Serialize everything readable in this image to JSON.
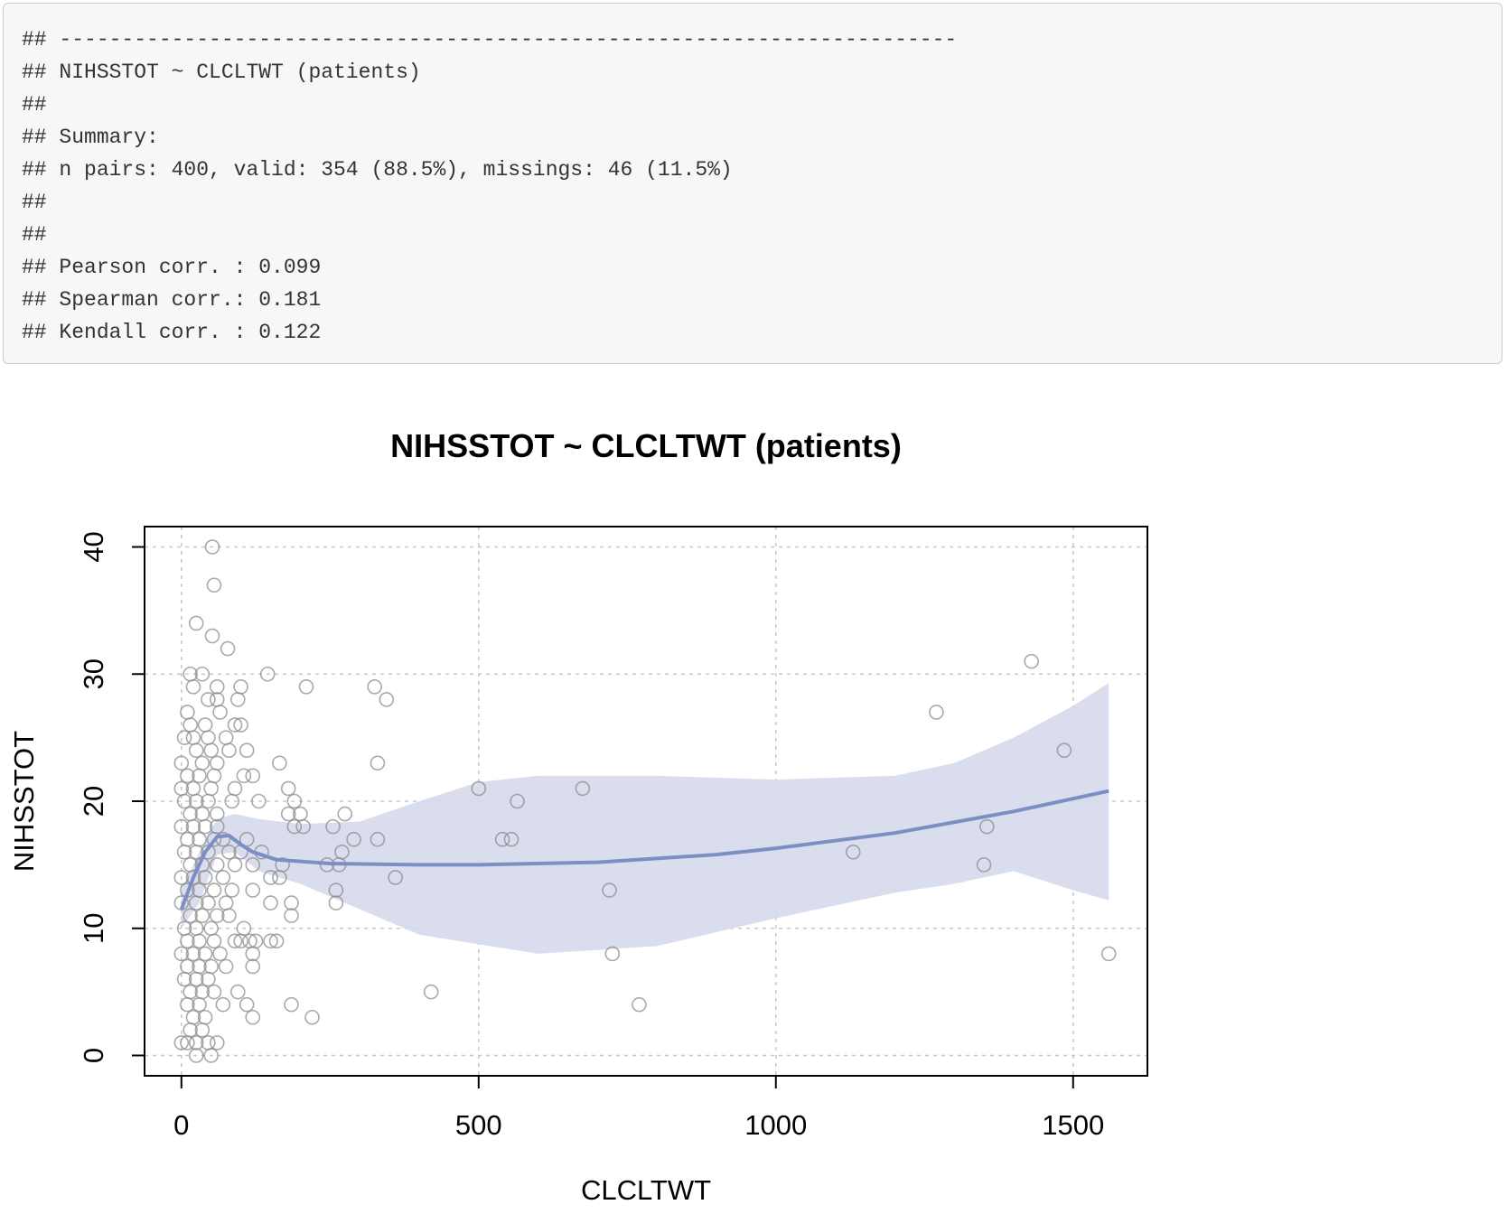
{
  "console": {
    "lines": [
      "## ------------------------------------------------------------------------",
      "## NIHSSTOT ~ CLCLTWT (patients)",
      "##",
      "## Summary:",
      "## n pairs: 400, valid: 354 (88.5%), missings: 46 (11.5%)",
      "##",
      "##",
      "## Pearson corr. : 0.099",
      "## Spearman corr.: 0.181",
      "## Kendall corr. : 0.122"
    ]
  },
  "chart_data": {
    "type": "scatter",
    "title": "NIHSSTOT ~ CLCLTWT (patients)",
    "xlabel": "CLCLTWT",
    "ylabel": "NIHSSTOT",
    "xlim": [
      -62,
      1625
    ],
    "ylim": [
      -1.6,
      41.6
    ],
    "x_ticks": [
      0,
      500,
      1000,
      1500
    ],
    "y_ticks": [
      0,
      10,
      20,
      30,
      40
    ],
    "grid": true,
    "colors": {
      "points": "#8c8c8c",
      "smooth_line": "#7b8fc4",
      "confidence_band": "#d5d9ec",
      "grid": "#c8c8c8"
    },
    "points": [
      [
        52,
        40
      ],
      [
        55,
        37
      ],
      [
        25,
        34
      ],
      [
        52,
        33
      ],
      [
        78,
        32
      ],
      [
        15,
        30
      ],
      [
        35,
        30
      ],
      [
        145,
        30
      ],
      [
        210,
        29
      ],
      [
        325,
        29
      ],
      [
        100,
        29
      ],
      [
        60,
        29
      ],
      [
        20,
        29
      ],
      [
        45,
        28
      ],
      [
        60,
        28
      ],
      [
        95,
        28
      ],
      [
        345,
        28
      ],
      [
        10,
        27
      ],
      [
        65,
        27
      ],
      [
        1270,
        27
      ],
      [
        15,
        26
      ],
      [
        40,
        26
      ],
      [
        90,
        26
      ],
      [
        100,
        26
      ],
      [
        5,
        25
      ],
      [
        20,
        25
      ],
      [
        45,
        25
      ],
      [
        75,
        25
      ],
      [
        1430,
        31
      ],
      [
        1485,
        24
      ],
      [
        25,
        24
      ],
      [
        50,
        24
      ],
      [
        80,
        24
      ],
      [
        110,
        24
      ],
      [
        0,
        23
      ],
      [
        35,
        23
      ],
      [
        60,
        23
      ],
      [
        165,
        23
      ],
      [
        330,
        23
      ],
      [
        10,
        22
      ],
      [
        30,
        22
      ],
      [
        55,
        22
      ],
      [
        105,
        22
      ],
      [
        120,
        22
      ],
      [
        0,
        21
      ],
      [
        20,
        21
      ],
      [
        50,
        21
      ],
      [
        90,
        21
      ],
      [
        180,
        21
      ],
      [
        500,
        21
      ],
      [
        675,
        21
      ],
      [
        5,
        20
      ],
      [
        25,
        20
      ],
      [
        45,
        20
      ],
      [
        85,
        20
      ],
      [
        130,
        20
      ],
      [
        190,
        20
      ],
      [
        565,
        20
      ],
      [
        15,
        19
      ],
      [
        35,
        19
      ],
      [
        60,
        19
      ],
      [
        180,
        19
      ],
      [
        200,
        19
      ],
      [
        275,
        19
      ],
      [
        0,
        18
      ],
      [
        20,
        18
      ],
      [
        40,
        18
      ],
      [
        60,
        18
      ],
      [
        190,
        18
      ],
      [
        205,
        18
      ],
      [
        255,
        18
      ],
      [
        1355,
        18
      ],
      [
        10,
        17
      ],
      [
        30,
        17
      ],
      [
        55,
        17
      ],
      [
        70,
        17
      ],
      [
        110,
        17
      ],
      [
        290,
        17
      ],
      [
        330,
        17
      ],
      [
        540,
        17
      ],
      [
        555,
        17
      ],
      [
        5,
        16
      ],
      [
        25,
        16
      ],
      [
        45,
        16
      ],
      [
        80,
        16
      ],
      [
        100,
        16
      ],
      [
        135,
        16
      ],
      [
        270,
        16
      ],
      [
        1130,
        16
      ],
      [
        15,
        15
      ],
      [
        35,
        15
      ],
      [
        60,
        15
      ],
      [
        90,
        15
      ],
      [
        120,
        15
      ],
      [
        170,
        15
      ],
      [
        245,
        15
      ],
      [
        265,
        15
      ],
      [
        1350,
        15
      ],
      [
        0,
        14
      ],
      [
        20,
        14
      ],
      [
        40,
        14
      ],
      [
        70,
        14
      ],
      [
        150,
        14
      ],
      [
        165,
        14
      ],
      [
        360,
        14
      ],
      [
        10,
        13
      ],
      [
        30,
        13
      ],
      [
        55,
        13
      ],
      [
        85,
        13
      ],
      [
        120,
        13
      ],
      [
        260,
        13
      ],
      [
        720,
        13
      ],
      [
        0,
        12
      ],
      [
        25,
        12
      ],
      [
        45,
        12
      ],
      [
        75,
        12
      ],
      [
        150,
        12
      ],
      [
        185,
        12
      ],
      [
        260,
        12
      ],
      [
        15,
        11
      ],
      [
        35,
        11
      ],
      [
        60,
        11
      ],
      [
        80,
        11
      ],
      [
        185,
        11
      ],
      [
        5,
        10
      ],
      [
        25,
        10
      ],
      [
        50,
        10
      ],
      [
        105,
        10
      ],
      [
        10,
        9
      ],
      [
        30,
        9
      ],
      [
        55,
        9
      ],
      [
        90,
        9
      ],
      [
        100,
        9
      ],
      [
        115,
        9
      ],
      [
        125,
        9
      ],
      [
        150,
        9
      ],
      [
        160,
        9
      ],
      [
        0,
        8
      ],
      [
        20,
        8
      ],
      [
        40,
        8
      ],
      [
        65,
        8
      ],
      [
        120,
        8
      ],
      [
        725,
        8
      ],
      [
        1560,
        8
      ],
      [
        10,
        7
      ],
      [
        30,
        7
      ],
      [
        50,
        7
      ],
      [
        75,
        7
      ],
      [
        120,
        7
      ],
      [
        5,
        6
      ],
      [
        25,
        6
      ],
      [
        45,
        6
      ],
      [
        15,
        5
      ],
      [
        35,
        5
      ],
      [
        55,
        5
      ],
      [
        95,
        5
      ],
      [
        420,
        5
      ],
      [
        10,
        4
      ],
      [
        30,
        4
      ],
      [
        70,
        4
      ],
      [
        110,
        4
      ],
      [
        185,
        4
      ],
      [
        770,
        4
      ],
      [
        20,
        3
      ],
      [
        40,
        3
      ],
      [
        120,
        3
      ],
      [
        220,
        3
      ],
      [
        15,
        2
      ],
      [
        35,
        2
      ],
      [
        0,
        1
      ],
      [
        10,
        1
      ],
      [
        25,
        1
      ],
      [
        45,
        1
      ],
      [
        60,
        1
      ],
      [
        25,
        0
      ],
      [
        50,
        0
      ]
    ],
    "smooth_line": [
      [
        0,
        11.5
      ],
      [
        20,
        14
      ],
      [
        40,
        16
      ],
      [
        60,
        17.2
      ],
      [
        80,
        17.3
      ],
      [
        100,
        16.6
      ],
      [
        120,
        16
      ],
      [
        160,
        15.4
      ],
      [
        250,
        15.1
      ],
      [
        400,
        15
      ],
      [
        500,
        15
      ],
      [
        700,
        15.2
      ],
      [
        900,
        15.8
      ],
      [
        1000,
        16.3
      ],
      [
        1200,
        17.5
      ],
      [
        1400,
        19.2
      ],
      [
        1560,
        20.8
      ]
    ],
    "confidence_band": {
      "upper": [
        [
          0,
          13
        ],
        [
          30,
          16
        ],
        [
          60,
          18.6
        ],
        [
          90,
          19
        ],
        [
          130,
          18.6
        ],
        [
          200,
          18.2
        ],
        [
          300,
          18.4
        ],
        [
          400,
          20
        ],
        [
          500,
          21.5
        ],
        [
          600,
          22
        ],
        [
          800,
          22
        ],
        [
          1000,
          21.7
        ],
        [
          1200,
          22
        ],
        [
          1300,
          23
        ],
        [
          1400,
          25
        ],
        [
          1500,
          27.5
        ],
        [
          1560,
          29.3
        ]
      ],
      "lower": [
        [
          1560,
          12.2
        ],
        [
          1500,
          13
        ],
        [
          1400,
          14.5
        ],
        [
          1300,
          13.5
        ],
        [
          1200,
          12.8
        ],
        [
          1000,
          10.8
        ],
        [
          800,
          8.6
        ],
        [
          600,
          8
        ],
        [
          400,
          9.5
        ],
        [
          300,
          11.5
        ],
        [
          200,
          13.5
        ],
        [
          130,
          14.5
        ],
        [
          90,
          16
        ],
        [
          60,
          15.8
        ],
        [
          30,
          12
        ],
        [
          0,
          10
        ]
      ]
    }
  }
}
